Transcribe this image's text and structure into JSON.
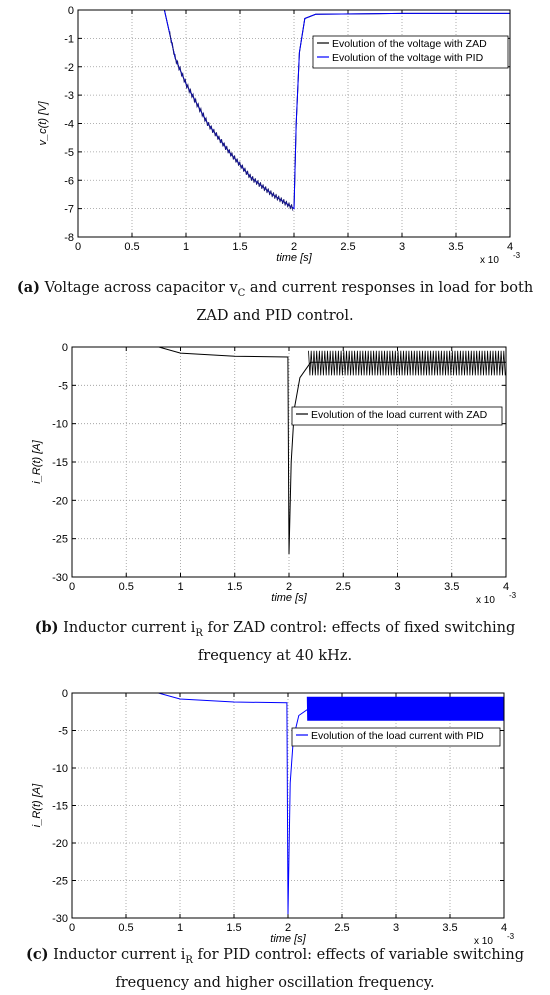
{
  "chart_data": [
    {
      "type": "line",
      "panel": "a",
      "ylabel": "v_c(t) [V]",
      "xlabel": "time [s]",
      "x_exponent_label": "x 10",
      "x_exponent": "-3",
      "xlim": [
        0,
        4
      ],
      "ylim": [
        -8,
        0
      ],
      "xticks": [
        "0",
        "0.5",
        "1",
        "1.5",
        "2",
        "2.5",
        "3",
        "3.5",
        "4"
      ],
      "yticks": [
        "0",
        "-1",
        "-2",
        "-3",
        "-4",
        "-5",
        "-6",
        "-7",
        "-8"
      ],
      "grid": true,
      "legend_position": "top-right",
      "series": [
        {
          "name": "Evolution of the voltage with ZAD",
          "color": "#000000",
          "x": [
            0,
            0.8,
            0.9,
            1.0,
            1.2,
            1.4,
            1.6,
            1.8,
            2.0,
            2.02,
            2.05,
            2.1,
            2.2,
            3.0,
            4.0
          ],
          "y": [
            0,
            0,
            -1.7,
            -2.6,
            -4.0,
            -5.0,
            -5.9,
            -6.5,
            -7.0,
            -4.0,
            -1.5,
            -0.3,
            -0.15,
            -0.12,
            -0.12
          ]
        },
        {
          "name": "Evolution of the voltage with PID",
          "color": "#0000ff",
          "x": [
            0,
            0.8,
            0.9,
            1.0,
            1.2,
            1.4,
            1.6,
            1.8,
            2.0,
            2.02,
            2.05,
            2.1,
            2.2,
            3.0,
            4.0
          ],
          "y": [
            0,
            0,
            -1.7,
            -2.6,
            -4.0,
            -5.0,
            -5.9,
            -6.5,
            -7.0,
            -4.0,
            -1.5,
            -0.3,
            -0.15,
            -0.12,
            -0.12
          ]
        }
      ]
    },
    {
      "type": "line",
      "panel": "b",
      "ylabel": "i_R(t) [A]",
      "xlabel": "time [s]",
      "x_exponent_label": "x 10",
      "x_exponent": "-3",
      "xlim": [
        0,
        4
      ],
      "ylim": [
        -30,
        0
      ],
      "xticks": [
        "0",
        "0.5",
        "1",
        "1.5",
        "2",
        "2.5",
        "3",
        "3.5",
        "4"
      ],
      "yticks": [
        "0",
        "-5",
        "-10",
        "-15",
        "-20",
        "-25",
        "-30"
      ],
      "grid": true,
      "legend_position": "upper-right",
      "series": [
        {
          "name": "Evolution of the load current with ZAD",
          "color": "#000000",
          "x": [
            0,
            0.8,
            1.0,
            1.5,
            1.99,
            2.0,
            2.02,
            2.05,
            2.1,
            2.2,
            4.0
          ],
          "y": [
            0,
            0,
            -0.8,
            -1.2,
            -1.3,
            -27,
            -15,
            -8,
            -4,
            -2,
            -2
          ],
          "oscillation_band": [
            -0.5,
            -3.7
          ]
        }
      ]
    },
    {
      "type": "line",
      "panel": "c",
      "ylabel": "i_R(t) [A]",
      "xlabel": "time [s]",
      "x_exponent_label": "x 10",
      "x_exponent": "-3",
      "xlim": [
        0,
        4
      ],
      "ylim": [
        -30,
        0
      ],
      "xticks": [
        "0",
        "0.5",
        "1",
        "1.5",
        "2",
        "2.5",
        "3",
        "3.5",
        "4"
      ],
      "yticks": [
        "0",
        "-5",
        "-10",
        "-15",
        "-20",
        "-25",
        "-30"
      ],
      "grid": true,
      "legend_position": "upper-right",
      "series": [
        {
          "name": "Evolution of the load current with PID",
          "color": "#0000ff",
          "x": [
            0,
            0.8,
            1.0,
            1.5,
            1.99,
            2.0,
            2.02,
            2.05,
            2.1,
            2.2,
            4.0
          ],
          "y": [
            0,
            0,
            -0.8,
            -1.2,
            -1.3,
            -29.5,
            -12,
            -6,
            -3,
            -2,
            -2
          ],
          "oscillation_band": [
            -0.5,
            -3.7
          ]
        }
      ]
    }
  ],
  "captions": {
    "a": {
      "label": "(a)",
      "text": "Voltage across capacitor v",
      "sub": "C",
      "rest": " and current responses in load for both ZAD and PID control."
    },
    "b": {
      "label": "(b)",
      "text": "Inductor current i",
      "sub": "R",
      "rest": " for ZAD control: effects of fixed switching frequency at 40 kHz."
    },
    "c": {
      "label": "(c)",
      "text": "Inductor current i",
      "sub": "R",
      "rest": " for PID control: effects of variable switching frequency and higher oscillation frequency."
    }
  }
}
